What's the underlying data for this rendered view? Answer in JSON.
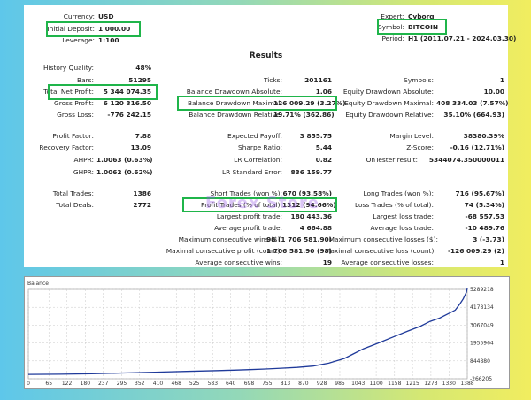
{
  "header": {
    "currency": {
      "label": "Currency:",
      "value": "USD"
    },
    "initial_deposit": {
      "label": "Initial Deposit:",
      "value": "1 000.00"
    },
    "leverage": {
      "label": "Leverage:",
      "value": "1:100"
    },
    "expert": {
      "label": "Expert:",
      "value": "Cyborg"
    },
    "symbol": {
      "label": "Symbol:",
      "value": "BITCOIN"
    },
    "period": {
      "label": "Period:",
      "value": "H1 (2011.07.21 - 2024.03.30)"
    }
  },
  "results_title": "Results",
  "stats": {
    "history_quality": {
      "label": "History Quality:",
      "value": "48%"
    },
    "bars": {
      "label": "Bars:",
      "value": "51295"
    },
    "ticks": {
      "label": "Ticks:",
      "value": "201161"
    },
    "symbols": {
      "label": "Symbols:",
      "value": "1"
    },
    "total_net_profit": {
      "label": "Total Net Profit:",
      "value": "5 344 074.35"
    },
    "balance_dd_abs": {
      "label": "Balance Drawdown Absolute:",
      "value": "1.06"
    },
    "equity_dd_abs": {
      "label": "Equity Drawdown Absolute:",
      "value": "10.00"
    },
    "gross_profit": {
      "label": "Gross Profit:",
      "value": "6 120 316.50"
    },
    "balance_dd_max": {
      "label": "Balance Drawdown Maximal:",
      "value": "126 009.29 (3.27%)"
    },
    "equity_dd_max": {
      "label": "Equity Drawdown Maximal:",
      "value": "408 334.03 (7.57%)"
    },
    "gross_loss": {
      "label": "Gross Loss:",
      "value": "-776 242.15"
    },
    "balance_dd_rel": {
      "label": "Balance Drawdown Relative:",
      "value": "19.71% (362.86)"
    },
    "equity_dd_rel": {
      "label": "Equity Drawdown Relative:",
      "value": "35.10% (664.93)"
    },
    "profit_factor": {
      "label": "Profit Factor:",
      "value": "7.88"
    },
    "expected_payoff": {
      "label": "Expected Payoff:",
      "value": "3 855.75"
    },
    "margin_level": {
      "label": "Margin Level:",
      "value": "38380.39%"
    },
    "recovery_factor": {
      "label": "Recovery Factor:",
      "value": "13.09"
    },
    "sharpe_ratio": {
      "label": "Sharpe Ratio:",
      "value": "5.44"
    },
    "z_score": {
      "label": "Z-Score:",
      "value": "-0.16 (12.71%)"
    },
    "ahpr": {
      "label": "AHPR:",
      "value": "1.0063 (0.63%)"
    },
    "lr_correlation": {
      "label": "LR Correlation:",
      "value": "0.82"
    },
    "ontester_result": {
      "label": "OnTester result:",
      "value": "5344074.350000011"
    },
    "ghpr": {
      "label": "GHPR:",
      "value": "1.0062 (0.62%)"
    },
    "lr_std_error": {
      "label": "LR Standard Error:",
      "value": "836 159.77"
    },
    "total_trades": {
      "label": "Total Trades:",
      "value": "1386"
    },
    "short_trades": {
      "label": "Short Trades (won %):",
      "value": "670 (93.58%)"
    },
    "long_trades": {
      "label": "Long Trades (won %):",
      "value": "716 (95.67%)"
    },
    "total_deals": {
      "label": "Total Deals:",
      "value": "2772"
    },
    "profit_trades": {
      "label": "Profit Trades (% of total):",
      "value": "1312 (94.66%)"
    },
    "loss_trades": {
      "label": "Loss Trades (% of total):",
      "value": "74 (5.34%)"
    },
    "largest_profit": {
      "label": "Largest profit trade:",
      "value": "180 443.36"
    },
    "largest_loss": {
      "label": "Largest loss trade:",
      "value": "-68 557.53"
    },
    "avg_profit": {
      "label": "Average profit trade:",
      "value": "4 664.88"
    },
    "avg_loss": {
      "label": "Average loss trade:",
      "value": "-10 489.76"
    },
    "max_consec_wins": {
      "label": "Maximum consecutive wins ($):",
      "value": "98 (1 706 581.90)"
    },
    "max_consec_losses": {
      "label": "Maximum consecutive losses ($):",
      "value": "3 (-3.73)"
    },
    "maximal_consec_profit": {
      "label": "Maximal consecutive profit (count):",
      "value": "1 706 581.90 (98)"
    },
    "maximal_consec_loss": {
      "label": "Maximal consecutive loss (count):",
      "value": "-126 009.29 (2)"
    },
    "avg_consec_wins": {
      "label": "Average consecutive wins:",
      "value": "19"
    },
    "avg_consec_losses": {
      "label": "Average consecutive losses:",
      "value": "1"
    }
  },
  "watermark": "Forex Store",
  "chart_data": {
    "type": "line",
    "title": "Balance",
    "xlabel": "",
    "ylabel": "",
    "x_ticks": [
      "0",
      "65",
      "122",
      "180",
      "237",
      "295",
      "352",
      "410",
      "468",
      "525",
      "583",
      "640",
      "698",
      "755",
      "813",
      "870",
      "928",
      "985",
      "1043",
      "1100",
      "1158",
      "1215",
      "1273",
      "1330",
      "1388"
    ],
    "y_ticks": [
      "-266205",
      "844880",
      "1955964",
      "3067049",
      "4178134",
      "5289218"
    ],
    "xlim": [
      0,
      1388
    ],
    "ylim": [
      -266205,
      5289218
    ],
    "grid": true,
    "line_color": "#1f3a9a",
    "series": [
      {
        "x": [
          0,
          100,
          200,
          300,
          400,
          500,
          600,
          650,
          700,
          750,
          800,
          850,
          900,
          950,
          1000,
          1030,
          1060,
          1100,
          1150,
          1200,
          1240,
          1270,
          1300,
          1330,
          1350,
          1365,
          1375,
          1385,
          1388
        ],
        "values": [
          1000,
          15000,
          40000,
          90000,
          140000,
          190000,
          240000,
          270000,
          300000,
          340000,
          390000,
          440000,
          520000,
          700000,
          1000000,
          1300000,
          1600000,
          1900000,
          2300000,
          2700000,
          3000000,
          3300000,
          3500000,
          3800000,
          4000000,
          4400000,
          4700000,
          5100000,
          5345000
        ]
      }
    ]
  }
}
